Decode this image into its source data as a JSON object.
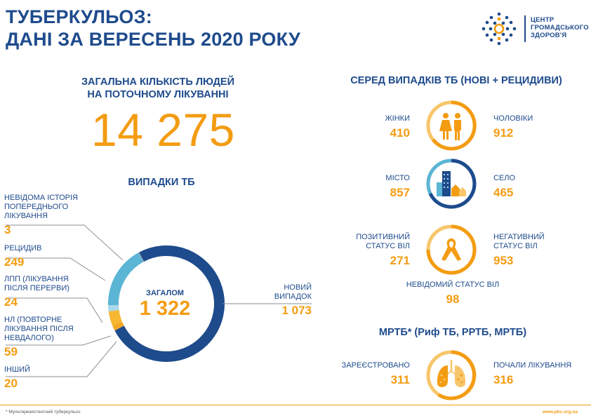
{
  "header": {
    "title_line1": "ТУБЕРКУЛЬОЗ:",
    "title_line2": "ДАНІ ЗА ВЕРЕСЕНЬ 2020 РОКУ",
    "logo_line1": "ЦЕНТР",
    "logo_line2": "ГРОМАДСЬКОГО",
    "logo_line3": "ЗДОРОВ'Я"
  },
  "treatment": {
    "heading_line1": "ЗАГАЛЬНА КІЛЬКІСТЬ ЛЮДЕЙ",
    "heading_line2": "НА ПОТОЧНОМУ ЛІКУВАННІ",
    "count": "14 275"
  },
  "cases": {
    "heading": "ВИПАДКИ ТБ",
    "total_label": "ЗАГАЛОМ",
    "total_value": "1 322",
    "categories": [
      {
        "label_lines": [
          "НЕВІДОМА ІСТОРІЯ",
          "ПОПЕРЕДНЬОГО",
          "ЛІКУВАННЯ"
        ],
        "value": "3"
      },
      {
        "label_lines": [
          "РЕЦИДИВ"
        ],
        "value": "249"
      },
      {
        "label_lines": [
          "ЛПП (ЛІКУВАННЯ",
          "ПІСЛЯ ПЕРЕРВИ)"
        ],
        "value": "24"
      },
      {
        "label_lines": [
          "НЛ (ПОВТОРНЕ",
          "ЛІКУВАННЯ ПІСЛЯ",
          "НЕВДАЛОГО)"
        ],
        "value": "59"
      },
      {
        "label_lines": [
          "ІНШИЙ"
        ],
        "value": "20"
      }
    ],
    "new_label_line1": "НОВИЙ",
    "new_label_line2": "ВИПАДОК",
    "new_value": "1 073"
  },
  "chart_data": {
    "type": "pie",
    "title": "ВИПАДКИ ТБ",
    "total": 1322,
    "slices": [
      {
        "name": "НОВИЙ ВИПАДОК",
        "value": 1073,
        "color": "#1e4b8c"
      },
      {
        "name": "ІНШИЙ",
        "value": 20,
        "color": "#f5a623"
      },
      {
        "name": "НЛ (ПОВТОРНЕ ЛІКУВАННЯ ПІСЛЯ НЕВДАЛОГО)",
        "value": 59,
        "color": "#f7b733"
      },
      {
        "name": "ЛПП (ЛІКУВАННЯ ПІСЛЯ ПЕРЕРВИ)",
        "value": 24,
        "color": "#a8d8ea"
      },
      {
        "name": "РЕЦИДИВ",
        "value": 249,
        "color": "#5bb5d5"
      },
      {
        "name": "НЕВІДОМА ІСТОРІЯ ПОПЕРЕДНЬОГО ЛІКУВАННЯ",
        "value": 3,
        "color": "#9aa5b1"
      }
    ]
  },
  "breakdown": {
    "heading": "СЕРЕД ВИПАДКІВ ТБ (НОВІ + РЕЦИДИВИ)",
    "women_label": "ЖІНКИ",
    "women_value": "410",
    "men_label": "ЧОЛОВІКИ",
    "men_value": "912",
    "city_label": "МІСТО",
    "city_value": "857",
    "village_label": "СЕЛО",
    "village_value": "465",
    "hiv_pos_line1": "ПОЗИТИВНИЙ",
    "hiv_pos_line2": "СТАТУС ВІЛ",
    "hiv_pos_value": "271",
    "hiv_neg_line1": "НЕГАТИВНИЙ",
    "hiv_neg_line2": "СТАТУС  ВІЛ",
    "hiv_neg_value": "953",
    "hiv_unknown_label": "НЕВІДОМИЙ СТАТУС ВІЛ",
    "hiv_unknown_value": "98",
    "ring_colors": {
      "navy": "#1e4b8c",
      "orange": "#f39c12",
      "light": "#f7c66b"
    }
  },
  "mdr": {
    "heading": "МРТБ* (Риф ТБ, РРТБ, МРТБ)",
    "registered_label": "ЗАРЕЄСТРОВАНО",
    "registered_value": "311",
    "started_label": "ПОЧАЛИ ЛІКУВАННЯ",
    "started_value": "316"
  },
  "footer": {
    "note": "* Мультирезистентний туберкульоз.",
    "url": "www.phc.org.ua"
  }
}
